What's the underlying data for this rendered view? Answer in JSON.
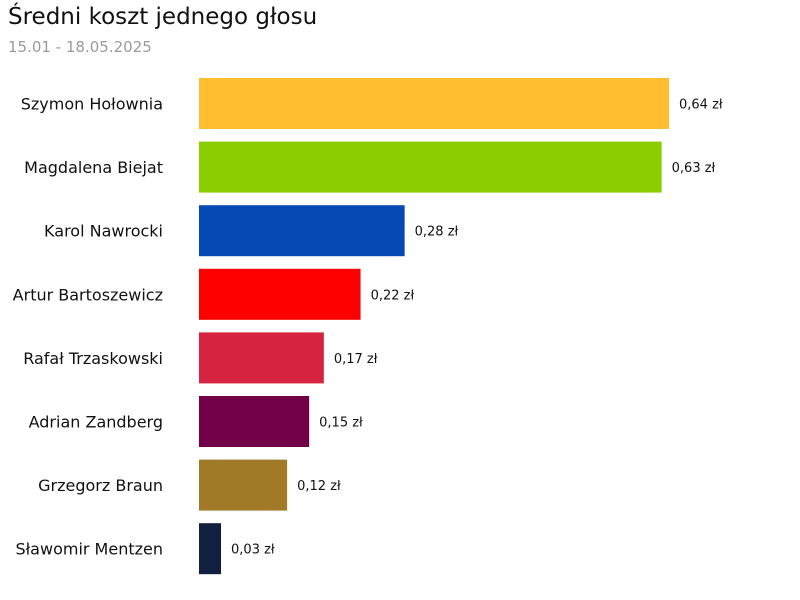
{
  "chart_data": {
    "type": "bar",
    "orientation": "horizontal",
    "title": "Średni koszt jednego głosu",
    "subtitle": "15.01 - 18.05.2025",
    "unit": "zł",
    "categories": [
      "Szymon Hołownia",
      "Magdalena Biejat",
      "Karol Nawrocki",
      "Artur Bartoszewicz",
      "Rafał Trzaskowski",
      "Adrian Zandberg",
      "Grzegorz Braun",
      "Sławomir Mentzen"
    ],
    "values": [
      0.64,
      0.63,
      0.28,
      0.22,
      0.17,
      0.15,
      0.12,
      0.03
    ],
    "value_labels": [
      "0,64 zł",
      "0,63 zł",
      "0,28 zł",
      "0,22 zł",
      "0,17 zł",
      "0,15 zł",
      "0,12 zł",
      "0,03 zł"
    ],
    "colors": [
      "#FFBE2E",
      "#8ACE00",
      "#0649B4",
      "#FF0000",
      "#D62440",
      "#720046",
      "#A07A26",
      "#12203F"
    ],
    "xlim": [
      0,
      0.64
    ],
    "grid": false,
    "legend": "none"
  }
}
